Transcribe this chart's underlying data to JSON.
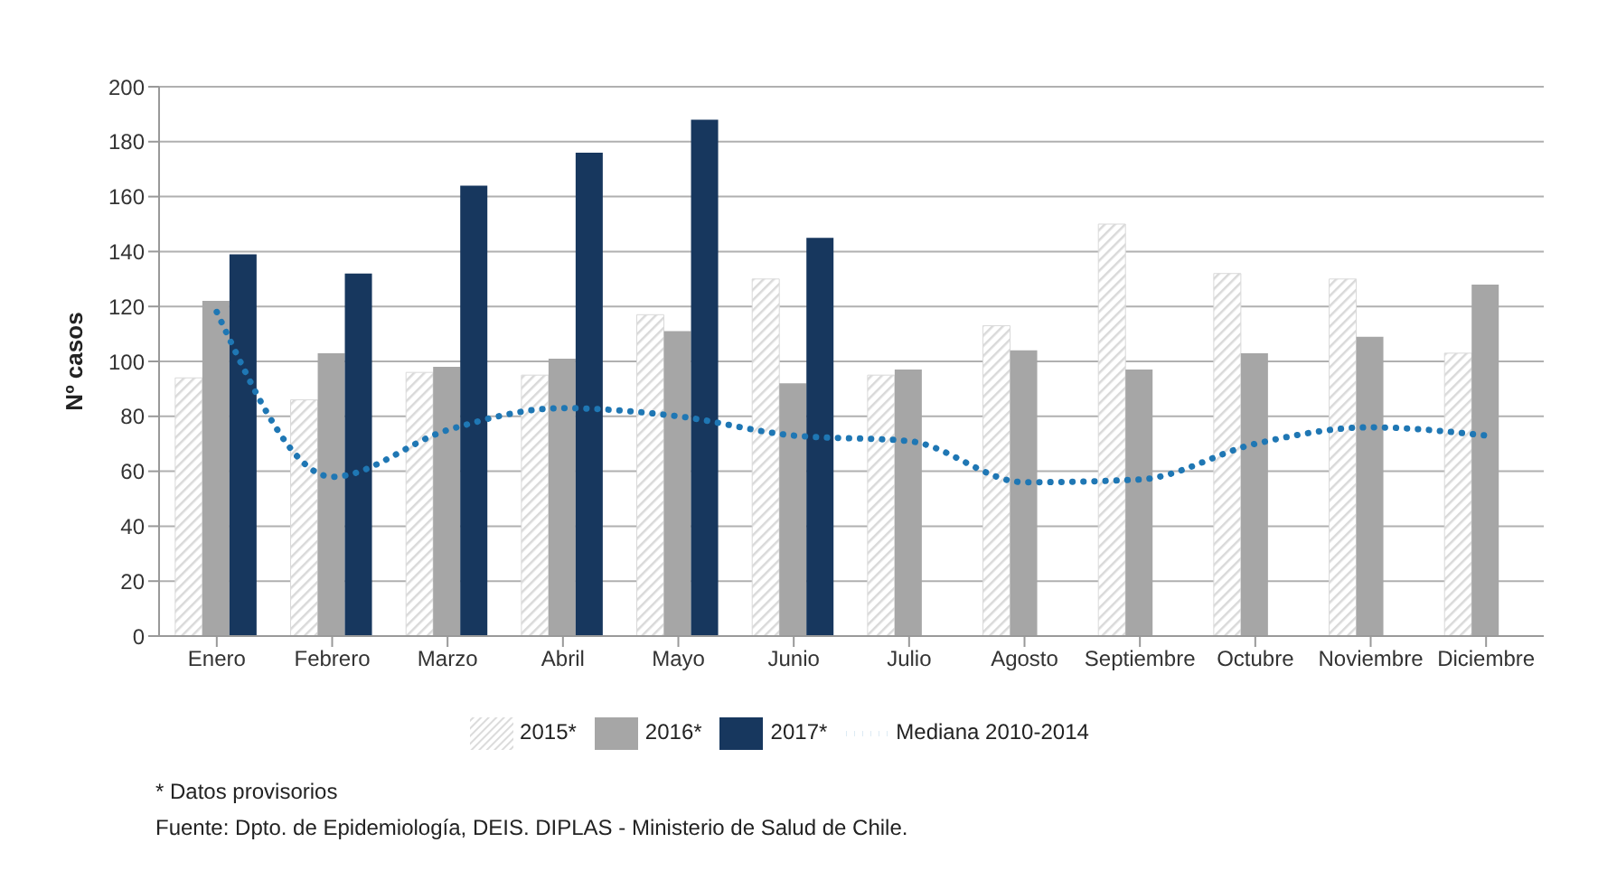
{
  "chart_data": {
    "type": "bar",
    "ylabel": "Nº casos",
    "categories": [
      "Enero",
      "Febrero",
      "Marzo",
      "Abril",
      "Mayo",
      "Junio",
      "Julio",
      "Agosto",
      "Septiembre",
      "Octubre",
      "Noviembre",
      "Diciembre"
    ],
    "series": [
      {
        "name": "2015*",
        "color": "#d9d9d9",
        "values": [
          94,
          86,
          96,
          95,
          117,
          130,
          95,
          113,
          150,
          132,
          130,
          103
        ]
      },
      {
        "name": "2016*",
        "color": "#a6a6a6",
        "values": [
          122,
          103,
          98,
          101,
          111,
          92,
          97,
          104,
          97,
          103,
          109,
          128
        ]
      },
      {
        "name": "2017*",
        "color": "#17375e",
        "values": [
          139,
          132,
          164,
          176,
          188,
          145,
          null,
          null,
          null,
          null,
          null,
          null
        ]
      },
      {
        "name": "Mediana 2010-2014",
        "type": "line",
        "color": "#1f77b4",
        "line_style": "dotted",
        "values": [
          118,
          58,
          75,
          83,
          80,
          73,
          71,
          56,
          57,
          70,
          76,
          73
        ]
      }
    ],
    "ylim": [
      0,
      200
    ],
    "yticks": [
      0,
      20,
      40,
      60,
      80,
      100,
      120,
      140,
      160,
      180,
      200
    ],
    "grid": "y",
    "legend": "bottom",
    "marker": "none",
    "annotations": [
      "* Datos provisorios",
      "Fuente:  Dpto. de Epidemiología, DEIS. DIPLAS - Ministerio de Salud de Chile."
    ]
  }
}
